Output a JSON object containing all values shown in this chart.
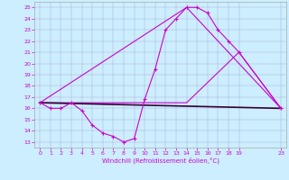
{
  "title": "",
  "xlabel": "Windchill (Refroidissement éolien,°C)",
  "bg_color": "#cceeff",
  "line_color": "#cc00cc",
  "dark_line_color": "#330033",
  "ylim": [
    12.5,
    25.5
  ],
  "xlim": [
    -0.5,
    23.5
  ],
  "yticks": [
    13,
    14,
    15,
    16,
    17,
    18,
    19,
    20,
    21,
    22,
    23,
    24,
    25
  ],
  "xticks": [
    0,
    1,
    2,
    3,
    4,
    5,
    6,
    7,
    8,
    9,
    10,
    11,
    12,
    13,
    14,
    15,
    16,
    17,
    18,
    19,
    23
  ],
  "series1_x": [
    0,
    1,
    2,
    3,
    4,
    5,
    6,
    7,
    8,
    9,
    10,
    11,
    12,
    13,
    14,
    15,
    16,
    17,
    18,
    19,
    23
  ],
  "series1_y": [
    16.5,
    16.0,
    16.0,
    16.5,
    15.8,
    14.5,
    13.8,
    13.5,
    13.0,
    13.3,
    16.8,
    19.5,
    23.0,
    24.0,
    25.0,
    25.0,
    24.5,
    23.0,
    22.0,
    21.0,
    16.0
  ],
  "series2_x": [
    0,
    23
  ],
  "series2_y": [
    16.5,
    16.0
  ],
  "series3_x": [
    0,
    3,
    9,
    14,
    19,
    23
  ],
  "series3_y": [
    16.5,
    16.5,
    16.5,
    16.5,
    21.0,
    16.0
  ],
  "series4_x": [
    0,
    14,
    23
  ],
  "series4_y": [
    16.5,
    25.0,
    16.0
  ]
}
